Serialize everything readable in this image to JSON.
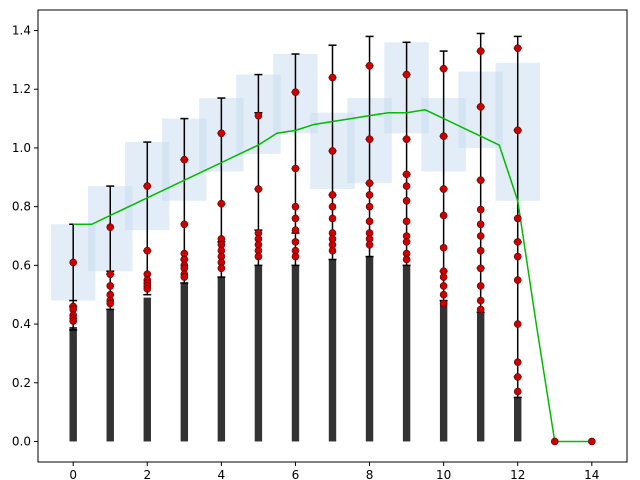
{
  "chart_data": {
    "type": "bar",
    "title": "",
    "xlabel": "",
    "ylabel": "",
    "xlim": [
      -0.95,
      14.95
    ],
    "ylim": [
      -0.07,
      1.47
    ],
    "grid": false,
    "x_ticks": [
      0,
      2,
      4,
      6,
      8,
      10,
      12,
      14
    ],
    "y_ticks": [
      0.0,
      0.2,
      0.4,
      0.6,
      0.8,
      1.0,
      1.2,
      1.4
    ],
    "x_tick_labels": [
      "0",
      "2",
      "4",
      "6",
      "8",
      "10",
      "12",
      "14"
    ],
    "y_tick_labels": [
      "0.0",
      "0.2",
      "0.4",
      "0.6",
      "0.8",
      "1.0",
      "1.2",
      "1.4"
    ],
    "colors": {
      "bar": "#333333",
      "line": "#00bb00",
      "point": "#cc0000",
      "band": "#c6dbef",
      "errorbar": "#000000"
    },
    "bars": {
      "x": [
        0,
        1,
        2,
        3,
        4,
        5,
        6,
        7,
        8,
        9,
        10,
        11,
        12
      ],
      "values": [
        0.39,
        0.45,
        0.49,
        0.54,
        0.56,
        0.6,
        0.6,
        0.62,
        0.63,
        0.6,
        0.48,
        0.44,
        0.15
      ]
    },
    "bands": [
      {
        "x": 0,
        "low": 0.48,
        "high": 0.74
      },
      {
        "x": 1,
        "low": 0.58,
        "high": 0.87
      },
      {
        "x": 2,
        "low": 0.72,
        "high": 1.02
      },
      {
        "x": 3,
        "low": 0.82,
        "high": 1.1
      },
      {
        "x": 4,
        "low": 0.92,
        "high": 1.17
      },
      {
        "x": 5,
        "low": 0.98,
        "high": 1.25
      },
      {
        "x": 6,
        "low": 1.05,
        "high": 1.32
      },
      {
        "x": 7,
        "low": 0.86,
        "high": 1.12
      },
      {
        "x": 8,
        "low": 0.88,
        "high": 1.17
      },
      {
        "x": 9,
        "low": 1.05,
        "high": 1.36
      },
      {
        "x": 10,
        "low": 0.92,
        "high": 1.17
      },
      {
        "x": 11,
        "low": 1.0,
        "high": 1.26
      },
      {
        "x": 12,
        "low": 0.82,
        "high": 1.29
      }
    ],
    "error_bars": [
      {
        "x": 0,
        "low": 0.38,
        "high": 0.74,
        "caps": [
          0.46,
          0.48
        ]
      },
      {
        "x": 1,
        "low": 0.45,
        "high": 0.87,
        "caps": [
          0.57,
          0.58
        ]
      },
      {
        "x": 2,
        "low": 0.5,
        "high": 1.02,
        "caps": [
          0.65,
          0.87
        ]
      },
      {
        "x": 3,
        "low": 0.54,
        "high": 1.1,
        "caps": [
          0.62,
          0.96
        ]
      },
      {
        "x": 4,
        "low": 0.56,
        "high": 1.17,
        "caps": [
          0.68,
          0.81,
          1.05
        ]
      },
      {
        "x": 5,
        "low": 0.6,
        "high": 1.25,
        "caps": [
          0.72,
          0.86,
          1.12
        ]
      },
      {
        "x": 6,
        "low": 0.6,
        "high": 1.32,
        "caps": [
          0.71,
          0.93,
          1.19
        ]
      },
      {
        "x": 7,
        "low": 0.62,
        "high": 1.35,
        "caps": [
          0.84,
          0.99,
          1.24
        ]
      },
      {
        "x": 8,
        "low": 0.63,
        "high": 1.38,
        "caps": [
          0.88,
          1.03,
          1.28
        ]
      },
      {
        "x": 9,
        "low": 0.6,
        "high": 1.36,
        "caps": [
          0.91,
          1.03,
          1.25
        ]
      },
      {
        "x": 10,
        "low": 0.48,
        "high": 1.33,
        "caps": [
          0.58,
          0.86,
          1.04,
          1.27
        ]
      },
      {
        "x": 11,
        "low": 0.44,
        "high": 1.39,
        "caps": [
          0.59,
          0.89,
          1.14,
          1.33
        ]
      },
      {
        "x": 12,
        "low": 0.15,
        "high": 1.38,
        "caps": [
          0.22,
          0.68,
          1.06,
          1.34
        ]
      }
    ],
    "points": [
      {
        "x": 0,
        "y": [
          0.61,
          0.46,
          0.45,
          0.43,
          0.42,
          0.41
        ]
      },
      {
        "x": 1,
        "y": [
          0.73,
          0.57,
          0.53,
          0.5,
          0.48,
          0.47
        ]
      },
      {
        "x": 2,
        "y": [
          0.87,
          0.65,
          0.57,
          0.55,
          0.54,
          0.53,
          0.52
        ]
      },
      {
        "x": 3,
        "y": [
          0.96,
          0.74,
          0.64,
          0.62,
          0.6,
          0.59,
          0.57,
          0.56
        ]
      },
      {
        "x": 4,
        "y": [
          1.05,
          0.81,
          0.69,
          0.67,
          0.65,
          0.63,
          0.61,
          0.59
        ]
      },
      {
        "x": 5,
        "y": [
          1.11,
          0.86,
          0.71,
          0.69,
          0.67,
          0.65,
          0.63
        ]
      },
      {
        "x": 6,
        "y": [
          1.19,
          0.93,
          0.8,
          0.76,
          0.72,
          0.68,
          0.65,
          0.63
        ]
      },
      {
        "x": 7,
        "y": [
          1.24,
          0.99,
          0.84,
          0.8,
          0.76,
          0.71,
          0.69,
          0.67,
          0.65
        ]
      },
      {
        "x": 8,
        "y": [
          1.28,
          1.03,
          0.88,
          0.84,
          0.8,
          0.75,
          0.71,
          0.69,
          0.67
        ]
      },
      {
        "x": 9,
        "y": [
          1.25,
          1.03,
          0.91,
          0.87,
          0.82,
          0.75,
          0.7,
          0.68,
          0.64,
          0.62
        ]
      },
      {
        "x": 10,
        "y": [
          1.27,
          1.04,
          0.86,
          0.77,
          0.66,
          0.58,
          0.56,
          0.53,
          0.5,
          0.47
        ]
      },
      {
        "x": 11,
        "y": [
          1.33,
          1.14,
          0.89,
          0.79,
          0.74,
          0.7,
          0.65,
          0.59,
          0.53,
          0.48,
          0.45
        ]
      },
      {
        "x": 12,
        "y": [
          1.34,
          1.06,
          0.76,
          0.68,
          0.63,
          0.55,
          0.4,
          0.27,
          0.22,
          0.17
        ]
      },
      {
        "x": 13,
        "y": [
          0.0
        ]
      },
      {
        "x": 14,
        "y": [
          0.0
        ]
      }
    ],
    "line": {
      "x": [
        0,
        0.5,
        1,
        1.5,
        2,
        2.5,
        3,
        3.5,
        4,
        4.5,
        5,
        5.5,
        6,
        6.5,
        7,
        7.5,
        8,
        8.5,
        9,
        9.5,
        10,
        10.5,
        11,
        11.5,
        12,
        12.5,
        13,
        14
      ],
      "y": [
        0.74,
        0.74,
        0.77,
        0.8,
        0.83,
        0.86,
        0.89,
        0.92,
        0.95,
        0.98,
        1.01,
        1.05,
        1.06,
        1.08,
        1.09,
        1.1,
        1.11,
        1.12,
        1.12,
        1.13,
        1.1,
        1.07,
        1.04,
        1.01,
        0.82,
        0.4,
        0.0,
        0.0
      ]
    }
  }
}
